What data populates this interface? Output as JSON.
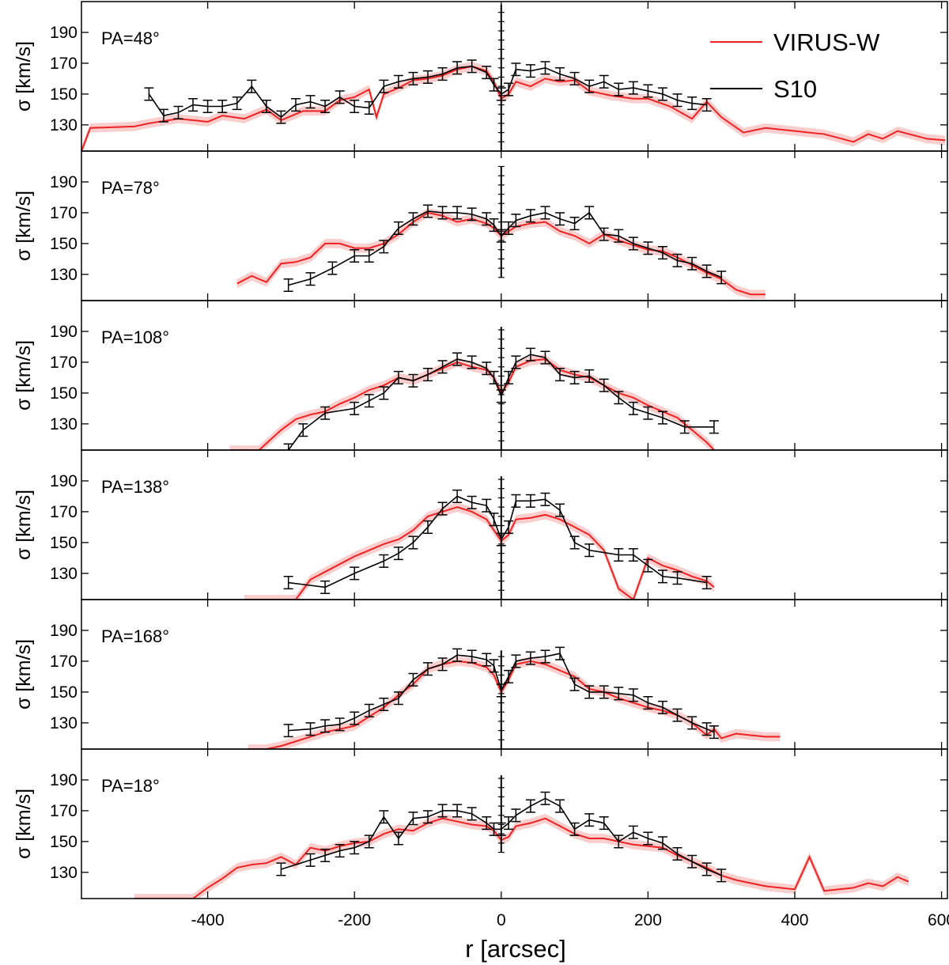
{
  "chart_data": {
    "type": "line",
    "title": "",
    "xlabel": "r [arcsec]",
    "ylabel": "σ [km/s]",
    "xlim": [
      -572,
      608
    ],
    "ylim": [
      113,
      210
    ],
    "x_ticks": [
      -400,
      -200,
      0,
      200,
      400,
      600
    ],
    "y_ticks": [
      130,
      150,
      170,
      190
    ],
    "legend": {
      "placement": "top-right",
      "entries": [
        {
          "name": "VIRUS-W",
          "color": "#ee2222"
        },
        {
          "name": "S10",
          "color": "#000000"
        }
      ]
    },
    "panels": [
      {
        "label": "PA=48°",
        "virusw": {
          "x": [
            -572,
            -560,
            -500,
            -480,
            -440,
            -400,
            -380,
            -350,
            -320,
            -300,
            -270,
            -240,
            -220,
            -200,
            -180,
            -170,
            -160,
            -140,
            -120,
            -100,
            -80,
            -60,
            -40,
            -20,
            -10,
            0,
            10,
            20,
            40,
            60,
            80,
            100,
            120,
            150,
            180,
            200,
            230,
            260,
            280,
            300,
            330,
            360,
            400,
            440,
            480,
            500,
            520,
            540,
            580,
            605
          ],
          "y": [
            113,
            128,
            129,
            131,
            134,
            132,
            136,
            134,
            140,
            133,
            139,
            139,
            146,
            148,
            153,
            135,
            150,
            154,
            159,
            160,
            162,
            166,
            168,
            165,
            158,
            147,
            150,
            158,
            155,
            160,
            158,
            159,
            152,
            149,
            147,
            147,
            142,
            134,
            145,
            135,
            125,
            128,
            126,
            124,
            119,
            124,
            121,
            126,
            121,
            120
          ]
        },
        "s10": {
          "x": [
            -480,
            -460,
            -440,
            -420,
            -400,
            -380,
            -360,
            -340,
            -320,
            -300,
            -280,
            -260,
            -240,
            -220,
            -200,
            -180,
            -160,
            -140,
            -120,
            -100,
            -80,
            -60,
            -40,
            -20,
            -10,
            0,
            10,
            20,
            40,
            60,
            80,
            100,
            120,
            140,
            160,
            180,
            200,
            220,
            240,
            260,
            280
          ],
          "y": [
            150,
            136,
            138,
            143,
            142,
            142,
            144,
            155,
            142,
            135,
            143,
            145,
            142,
            148,
            142,
            141,
            155,
            158,
            160,
            161,
            163,
            167,
            168,
            164,
            156,
            150,
            153,
            166,
            165,
            167,
            163,
            160,
            155,
            158,
            153,
            154,
            152,
            150,
            146,
            144,
            143
          ]
        },
        "center_err": [
          113,
          208
        ]
      },
      {
        "label": "PA=78°",
        "virusw": {
          "x": [
            -360,
            -340,
            -320,
            -300,
            -280,
            -260,
            -240,
            -220,
            -200,
            -180,
            -160,
            -140,
            -120,
            -100,
            -80,
            -60,
            -40,
            -20,
            -10,
            0,
            10,
            20,
            40,
            60,
            80,
            100,
            120,
            140,
            160,
            180,
            200,
            220,
            240,
            260,
            280,
            300,
            320,
            340,
            360
          ],
          "y": [
            124,
            129,
            125,
            137,
            138,
            141,
            150,
            150,
            147,
            147,
            150,
            156,
            164,
            170,
            168,
            164,
            166,
            163,
            160,
            155,
            158,
            161,
            163,
            164,
            158,
            155,
            150,
            156,
            152,
            149,
            146,
            145,
            141,
            136,
            131,
            127,
            120,
            117,
            117
          ]
        },
        "s10": {
          "x": [
            -290,
            -260,
            -230,
            -200,
            -180,
            -160,
            -140,
            -120,
            -100,
            -80,
            -60,
            -40,
            -20,
            -10,
            0,
            10,
            20,
            40,
            60,
            80,
            100,
            120,
            140,
            160,
            180,
            200,
            220,
            240,
            260,
            280,
            300
          ],
          "y": [
            123,
            127,
            134,
            142,
            142,
            148,
            160,
            166,
            171,
            170,
            170,
            169,
            166,
            162,
            155,
            160,
            165,
            168,
            170,
            166,
            163,
            170,
            156,
            155,
            150,
            147,
            144,
            139,
            137,
            132,
            128
          ]
        },
        "center_err": [
          128,
          200
        ]
      },
      {
        "label": "PA=108°",
        "virusw": {
          "x": [
            -370,
            -330,
            -300,
            -280,
            -260,
            -240,
            -220,
            -200,
            -180,
            -160,
            -140,
            -120,
            -100,
            -80,
            -60,
            -40,
            -20,
            -10,
            0,
            10,
            20,
            40,
            60,
            80,
            100,
            120,
            140,
            160,
            180,
            200,
            220,
            240,
            260,
            280,
            290
          ],
          "y": [
            113,
            113,
            126,
            133,
            136,
            138,
            143,
            147,
            152,
            155,
            160,
            158,
            162,
            166,
            170,
            167,
            165,
            160,
            150,
            157,
            167,
            171,
            172,
            165,
            162,
            160,
            155,
            150,
            147,
            142,
            138,
            134,
            126,
            118,
            113
          ]
        },
        "s10": {
          "x": [
            -290,
            -270,
            -240,
            -200,
            -180,
            -160,
            -140,
            -120,
            -100,
            -80,
            -60,
            -40,
            -20,
            -10,
            0,
            10,
            20,
            40,
            60,
            80,
            100,
            120,
            140,
            160,
            180,
            200,
            220,
            250,
            290
          ],
          "y": [
            113,
            126,
            137,
            140,
            145,
            150,
            160,
            158,
            162,
            167,
            172,
            170,
            166,
            160,
            148,
            160,
            170,
            175,
            173,
            162,
            160,
            161,
            155,
            147,
            140,
            137,
            134,
            128,
            128
          ]
        },
        "center_err": [
          113,
          193
        ]
      },
      {
        "label": "PA=138°",
        "virusw": {
          "x": [
            -350,
            -330,
            -300,
            -280,
            -260,
            -240,
            -220,
            -200,
            -180,
            -160,
            -140,
            -120,
            -100,
            -80,
            -60,
            -40,
            -20,
            -10,
            0,
            10,
            20,
            40,
            60,
            80,
            100,
            120,
            140,
            160,
            180,
            200,
            220,
            240,
            260,
            280,
            290
          ],
          "y": [
            113,
            113,
            113,
            113,
            126,
            131,
            136,
            141,
            145,
            149,
            152,
            158,
            167,
            170,
            173,
            170,
            165,
            158,
            151,
            155,
            165,
            166,
            168,
            165,
            160,
            155,
            145,
            120,
            113,
            140,
            135,
            132,
            128,
            125,
            121
          ]
        },
        "s10": {
          "x": [
            -290,
            -240,
            -200,
            -160,
            -140,
            -120,
            -100,
            -80,
            -60,
            -40,
            -20,
            -10,
            0,
            10,
            20,
            40,
            60,
            80,
            100,
            120,
            160,
            180,
            200,
            220,
            240,
            280
          ],
          "y": [
            124,
            121,
            130,
            138,
            143,
            150,
            160,
            172,
            180,
            176,
            174,
            165,
            152,
            160,
            177,
            177,
            178,
            171,
            150,
            145,
            142,
            142,
            135,
            128,
            127,
            124
          ]
        },
        "center_err": [
          113,
          193
        ]
      },
      {
        "label": "PA=168°",
        "virusw": {
          "x": [
            -345,
            -320,
            -300,
            -280,
            -260,
            -240,
            -220,
            -200,
            -180,
            -160,
            -140,
            -120,
            -100,
            -80,
            -60,
            -40,
            -20,
            -10,
            0,
            10,
            20,
            40,
            60,
            80,
            100,
            120,
            140,
            160,
            180,
            200,
            220,
            240,
            260,
            280,
            290,
            300,
            320,
            340,
            360,
            380
          ],
          "y": [
            113,
            113,
            115,
            118,
            121,
            124,
            126,
            128,
            134,
            140,
            148,
            155,
            165,
            168,
            170,
            169,
            166,
            161,
            150,
            158,
            168,
            170,
            168,
            164,
            160,
            152,
            150,
            146,
            143,
            140,
            138,
            135,
            130,
            122,
            126,
            120,
            123,
            122,
            121,
            121
          ]
        },
        "s10": {
          "x": [
            -290,
            -260,
            -240,
            -220,
            -200,
            -180,
            -160,
            -140,
            -120,
            -100,
            -80,
            -60,
            -40,
            -20,
            -10,
            0,
            10,
            20,
            40,
            60,
            80,
            100,
            120,
            140,
            160,
            180,
            200,
            220,
            240,
            260,
            280,
            290
          ],
          "y": [
            125,
            126,
            128,
            129,
            133,
            138,
            142,
            146,
            158,
            165,
            168,
            174,
            173,
            171,
            167,
            151,
            160,
            170,
            172,
            173,
            175,
            155,
            150,
            150,
            149,
            148,
            143,
            140,
            135,
            130,
            126,
            124
          ]
        },
        "center_err": [
          113,
          177
        ]
      },
      {
        "label": "PA=18°",
        "virusw": {
          "x": [
            -500,
            -450,
            -420,
            -400,
            -380,
            -360,
            -340,
            -320,
            -300,
            -280,
            -260,
            -240,
            -220,
            -200,
            -180,
            -160,
            -140,
            -120,
            -100,
            -80,
            -60,
            -40,
            -20,
            -10,
            0,
            10,
            20,
            40,
            60,
            80,
            100,
            120,
            140,
            160,
            180,
            200,
            220,
            240,
            260,
            280,
            300,
            320,
            360,
            400,
            420,
            440,
            480,
            500,
            520,
            540,
            555
          ],
          "y": [
            113,
            113,
            113,
            120,
            126,
            133,
            135,
            136,
            140,
            135,
            146,
            144,
            147,
            149,
            150,
            155,
            158,
            157,
            162,
            165,
            163,
            161,
            160,
            157,
            151,
            153,
            160,
            162,
            165,
            160,
            155,
            152,
            152,
            150,
            148,
            147,
            146,
            141,
            137,
            133,
            128,
            125,
            121,
            119,
            140,
            118,
            120,
            123,
            121,
            127,
            124
          ]
        },
        "s10": {
          "x": [
            -300,
            -260,
            -240,
            -220,
            -200,
            -180,
            -160,
            -140,
            -120,
            -100,
            -80,
            -60,
            -40,
            -20,
            -10,
            0,
            10,
            20,
            40,
            60,
            80,
            100,
            120,
            140,
            160,
            180,
            200,
            220,
            240,
            260,
            280,
            300
          ],
          "y": [
            132,
            138,
            141,
            144,
            146,
            150,
            166,
            152,
            165,
            166,
            170,
            170,
            168,
            162,
            158,
            158,
            162,
            167,
            173,
            178,
            173,
            158,
            164,
            162,
            150,
            156,
            152,
            149,
            142,
            137,
            132,
            128
          ]
        },
        "center_err": [
          143,
          193
        ]
      }
    ]
  }
}
